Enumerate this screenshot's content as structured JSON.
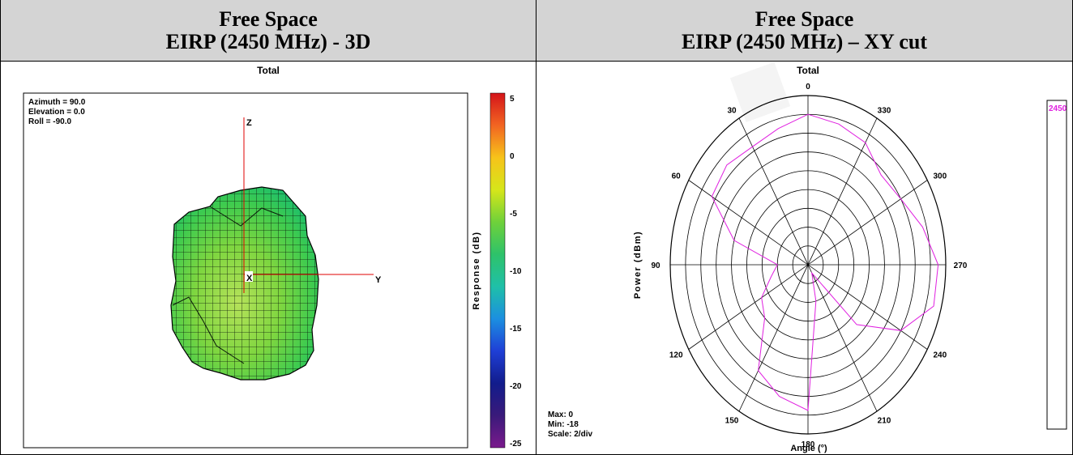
{
  "left_header": {
    "line1": "Free Space",
    "line2": "EIRP (2450 MHz) - 3D"
  },
  "right_header": {
    "line1": "Free Space",
    "line2": "EIRP (2450 MHz) – XY cut"
  },
  "left_panel": {
    "title": "Total",
    "view": {
      "azimuth": "Azimuth = 90.0",
      "elevation": "Elevation = 0.0",
      "roll": "Roll = -90.0"
    },
    "axes": {
      "z": "Z",
      "x": "X",
      "y": "Y"
    },
    "colorbar": {
      "label": "Response (dB)",
      "ticks": [
        "5",
        "0",
        "-5",
        "-10",
        "-15",
        "-20",
        "-25"
      ],
      "stops": [
        "#d4141a",
        "#f26522",
        "#f7c31a",
        "#d6e61a",
        "#6fd13a",
        "#2ec26a",
        "#1fc0a8",
        "#1c8fe0",
        "#1f3fd6",
        "#121c8c",
        "#3a1a7a",
        "#7a1a8c"
      ]
    }
  },
  "right_panel": {
    "title": "Total",
    "ylabel": "Power (dBm)",
    "xlabel": "Angle (°)",
    "stats": {
      "max": "Max: 0",
      "min": "Min: -18",
      "scale": "Scale: 2/div"
    },
    "legend": "2450",
    "series_color": "#e020e0"
  },
  "chart_data": [
    {
      "type": "heatmap",
      "title": "Total",
      "zlabel": "Response (dB)",
      "zlim": [
        -25,
        5
      ],
      "zticks": [
        5,
        0,
        -5,
        -10,
        -15,
        -20,
        -25
      ]
    },
    {
      "type": "line",
      "subtype": "polar",
      "title": "Total",
      "xlabel": "Angle (°)",
      "ylabel": "Power (dBm)",
      "rlim": [
        -18,
        0
      ],
      "scale_per_div": 2,
      "angle_labels": [
        "0",
        "30",
        "60",
        "90",
        "120",
        "150",
        "180",
        "210",
        "240",
        "270",
        "300",
        "330"
      ],
      "series": [
        {
          "name": "2450",
          "angles": [
            0,
            15,
            30,
            45,
            60,
            75,
            90,
            105,
            120,
            135,
            150,
            165,
            180,
            195,
            210,
            225,
            240,
            255,
            270,
            285,
            300,
            315,
            330,
            345
          ],
          "values": [
            -2,
            -3,
            -3.5,
            -3,
            -3.5,
            -8,
            -14,
            -13,
            -11,
            -10,
            -5,
            -3.5,
            -2.5,
            -14,
            -17,
            -9,
            -4,
            -1,
            -1,
            -2.5,
            -4,
            -4.5,
            -3,
            -2.5
          ]
        }
      ]
    }
  ]
}
